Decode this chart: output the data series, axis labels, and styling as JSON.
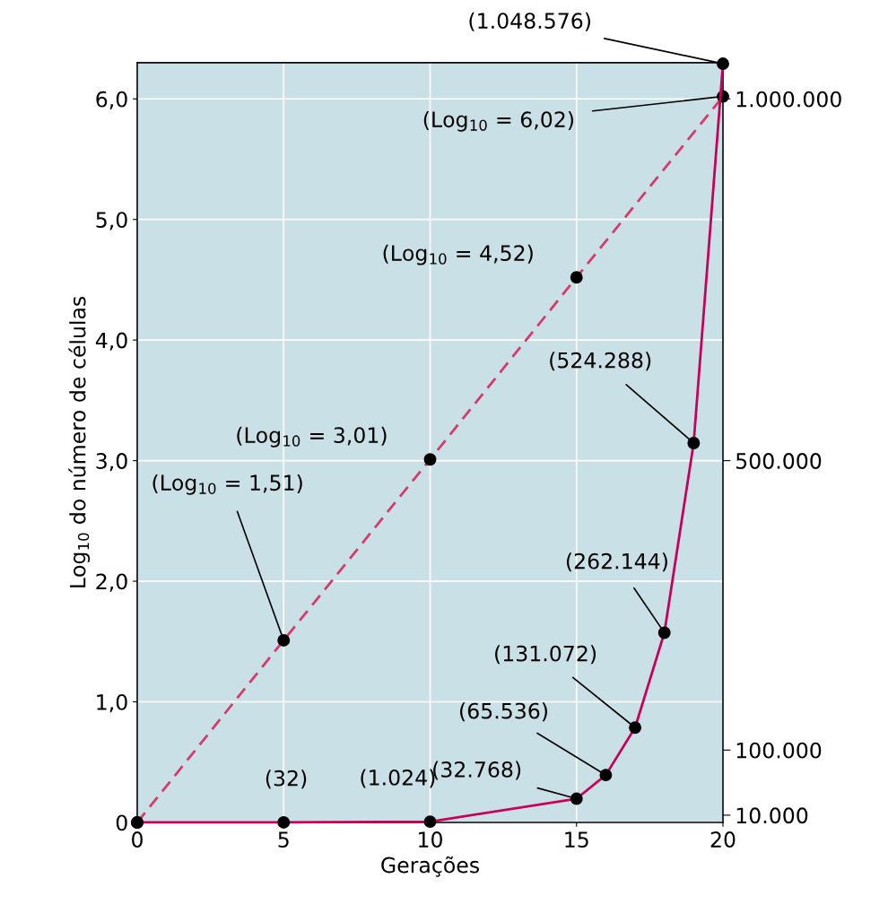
{
  "chart_data": {
    "type": "line",
    "xlabel": "Gerações",
    "ylabel": "Log$_{10}$ do número de células",
    "xlim": [
      0,
      20
    ],
    "xticks": [
      0,
      5,
      10,
      15,
      20
    ],
    "ylim": [
      0,
      6.3
    ],
    "yticks": [
      0,
      {
        "value": 1,
        "label": "1,0"
      },
      {
        "value": 2,
        "label": "2,0"
      },
      {
        "value": 3,
        "label": "3,0"
      },
      {
        "value": 4,
        "label": "4,0"
      },
      {
        "value": 5,
        "label": "5,0"
      },
      {
        "value": 6,
        "label": "6,0"
      }
    ],
    "y2lim": [
      0,
      1050000
    ],
    "y2ticks": [
      {
        "value": 10000,
        "label": "10.000"
      },
      {
        "value": 100000,
        "label": "100.000"
      },
      {
        "value": 500000,
        "label": "500.000"
      },
      {
        "value": 1000000,
        "label": "1.000.000"
      }
    ],
    "grid": true,
    "marker": "circle",
    "series": [
      {
        "color": "#d63a6a",
        "line_style": "dashed",
        "x": [
          0,
          5,
          10,
          15,
          20
        ],
        "values": [
          0,
          1.51,
          3.01,
          4.52,
          6.02
        ],
        "value_labels": [
          null,
          "(Log$_{10}$ = 1,51)",
          "(Log$_{10}$ = 3,01)",
          "(Log$_{10}$ = 4,52)",
          "(Log$_{10}$ = 6,02)"
        ]
      },
      {
        "color": "#c8005a",
        "line_style": "solid",
        "axis": "y2",
        "x": [
          0,
          5,
          10,
          15,
          16,
          17,
          18,
          19,
          20
        ],
        "values": [
          1,
          32,
          1024,
          32768,
          65536,
          131072,
          262144,
          524288,
          1048576
        ],
        "value_labels": [
          null,
          "(32)",
          "(1.024)",
          "(32.768)",
          "(65.536)",
          "(131.072)",
          "(262.144)",
          "(524.288)",
          "(1.048.576)"
        ]
      }
    ]
  }
}
